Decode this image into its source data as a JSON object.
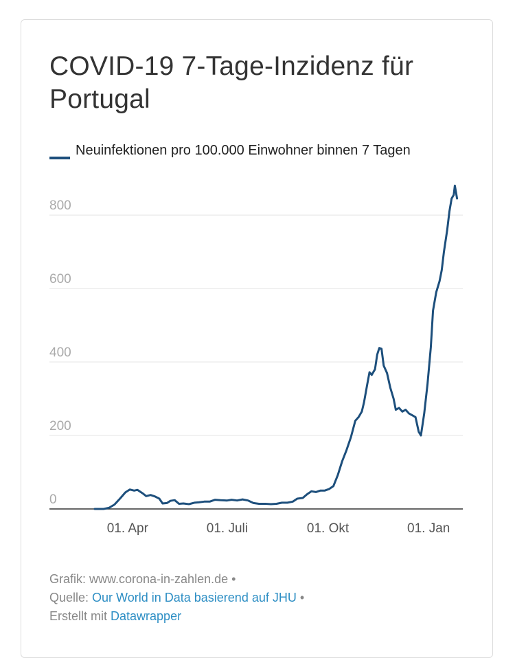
{
  "chart_data": {
    "type": "line",
    "title": "COVID-19 7-Tage-Inzidenz für Portugal",
    "xlabel": "",
    "ylabel": "",
    "ylim": [
      0,
      860
    ],
    "y_ticks": [
      "0",
      "200",
      "400",
      "600",
      "800"
    ],
    "x_ticks": [
      {
        "date": "2020-04-01",
        "label": "01. Apr"
      },
      {
        "date": "2020-07-01",
        "label": "01. Juli"
      },
      {
        "date": "2020-10-01",
        "label": "01. Okt"
      },
      {
        "date": "2021-01-01",
        "label": "01. Jan"
      }
    ],
    "xlim": [
      "2020-03-02",
      "2021-01-31"
    ],
    "grid": true,
    "legend_position": "top-left",
    "series": [
      {
        "name": "Neuinfektionen pro 100.000 Einwohner binnen 7 Tagen",
        "color": "#1d4f7c",
        "points": [
          [
            "2020-03-02",
            0
          ],
          [
            "2020-03-10",
            0
          ],
          [
            "2020-03-15",
            3
          ],
          [
            "2020-03-20",
            12
          ],
          [
            "2020-03-25",
            28
          ],
          [
            "2020-03-30",
            45
          ],
          [
            "2020-04-03",
            53
          ],
          [
            "2020-04-07",
            50
          ],
          [
            "2020-04-10",
            52
          ],
          [
            "2020-04-15",
            42
          ],
          [
            "2020-04-18",
            35
          ],
          [
            "2020-04-22",
            38
          ],
          [
            "2020-04-26",
            34
          ],
          [
            "2020-04-30",
            28
          ],
          [
            "2020-05-03",
            15
          ],
          [
            "2020-05-07",
            16
          ],
          [
            "2020-05-10",
            22
          ],
          [
            "2020-05-14",
            24
          ],
          [
            "2020-05-18",
            14
          ],
          [
            "2020-05-22",
            15
          ],
          [
            "2020-05-27",
            13
          ],
          [
            "2020-06-01",
            17
          ],
          [
            "2020-06-05",
            18
          ],
          [
            "2020-06-10",
            20
          ],
          [
            "2020-06-15",
            20
          ],
          [
            "2020-06-20",
            25
          ],
          [
            "2020-06-25",
            24
          ],
          [
            "2020-07-01",
            23
          ],
          [
            "2020-07-05",
            25
          ],
          [
            "2020-07-10",
            23
          ],
          [
            "2020-07-15",
            26
          ],
          [
            "2020-07-20",
            23
          ],
          [
            "2020-07-25",
            16
          ],
          [
            "2020-07-30",
            14
          ],
          [
            "2020-08-05",
            14
          ],
          [
            "2020-08-10",
            13
          ],
          [
            "2020-08-15",
            14
          ],
          [
            "2020-08-20",
            17
          ],
          [
            "2020-08-25",
            17
          ],
          [
            "2020-08-30",
            20
          ],
          [
            "2020-09-03",
            28
          ],
          [
            "2020-09-08",
            30
          ],
          [
            "2020-09-12",
            40
          ],
          [
            "2020-09-16",
            48
          ],
          [
            "2020-09-20",
            46
          ],
          [
            "2020-09-24",
            50
          ],
          [
            "2020-09-28",
            50
          ],
          [
            "2020-10-02",
            54
          ],
          [
            "2020-10-06",
            62
          ],
          [
            "2020-10-10",
            92
          ],
          [
            "2020-10-14",
            130
          ],
          [
            "2020-10-18",
            160
          ],
          [
            "2020-10-22",
            195
          ],
          [
            "2020-10-26",
            240
          ],
          [
            "2020-10-29",
            250
          ],
          [
            "2020-11-01",
            265
          ],
          [
            "2020-11-03",
            290
          ],
          [
            "2020-11-06",
            340
          ],
          [
            "2020-11-08",
            372
          ],
          [
            "2020-11-10",
            365
          ],
          [
            "2020-11-13",
            380
          ],
          [
            "2020-11-15",
            420
          ],
          [
            "2020-11-17",
            438
          ],
          [
            "2020-11-19",
            436
          ],
          [
            "2020-11-21",
            390
          ],
          [
            "2020-11-24",
            370
          ],
          [
            "2020-11-27",
            330
          ],
          [
            "2020-11-30",
            300
          ],
          [
            "2020-12-02",
            270
          ],
          [
            "2020-12-05",
            275
          ],
          [
            "2020-12-08",
            265
          ],
          [
            "2020-12-11",
            270
          ],
          [
            "2020-12-14",
            260
          ],
          [
            "2020-12-17",
            255
          ],
          [
            "2020-12-20",
            250
          ],
          [
            "2020-12-23",
            210
          ],
          [
            "2020-12-25",
            200
          ],
          [
            "2020-12-28",
            260
          ],
          [
            "2020-12-31",
            340
          ],
          [
            "2021-01-03",
            440
          ],
          [
            "2021-01-05",
            540
          ],
          [
            "2021-01-08",
            590
          ],
          [
            "2021-01-11",
            620
          ],
          [
            "2021-01-13",
            650
          ],
          [
            "2021-01-15",
            700
          ],
          [
            "2021-01-18",
            760
          ],
          [
            "2021-01-20",
            810
          ],
          [
            "2021-01-22",
            845
          ],
          [
            "2021-01-24",
            855
          ],
          [
            "2021-01-25",
            880
          ],
          [
            "2021-01-27",
            845
          ]
        ]
      }
    ]
  },
  "footer": {
    "grafik": "Grafik: www.corona-in-zahlen.de",
    "quelle_prefix": "Quelle: ",
    "quelle_link": "Our World in Data basierend auf JHU",
    "erstellt_prefix": "Erstellt mit ",
    "erstellt_link": "Datawrapper",
    "separator": "•"
  }
}
